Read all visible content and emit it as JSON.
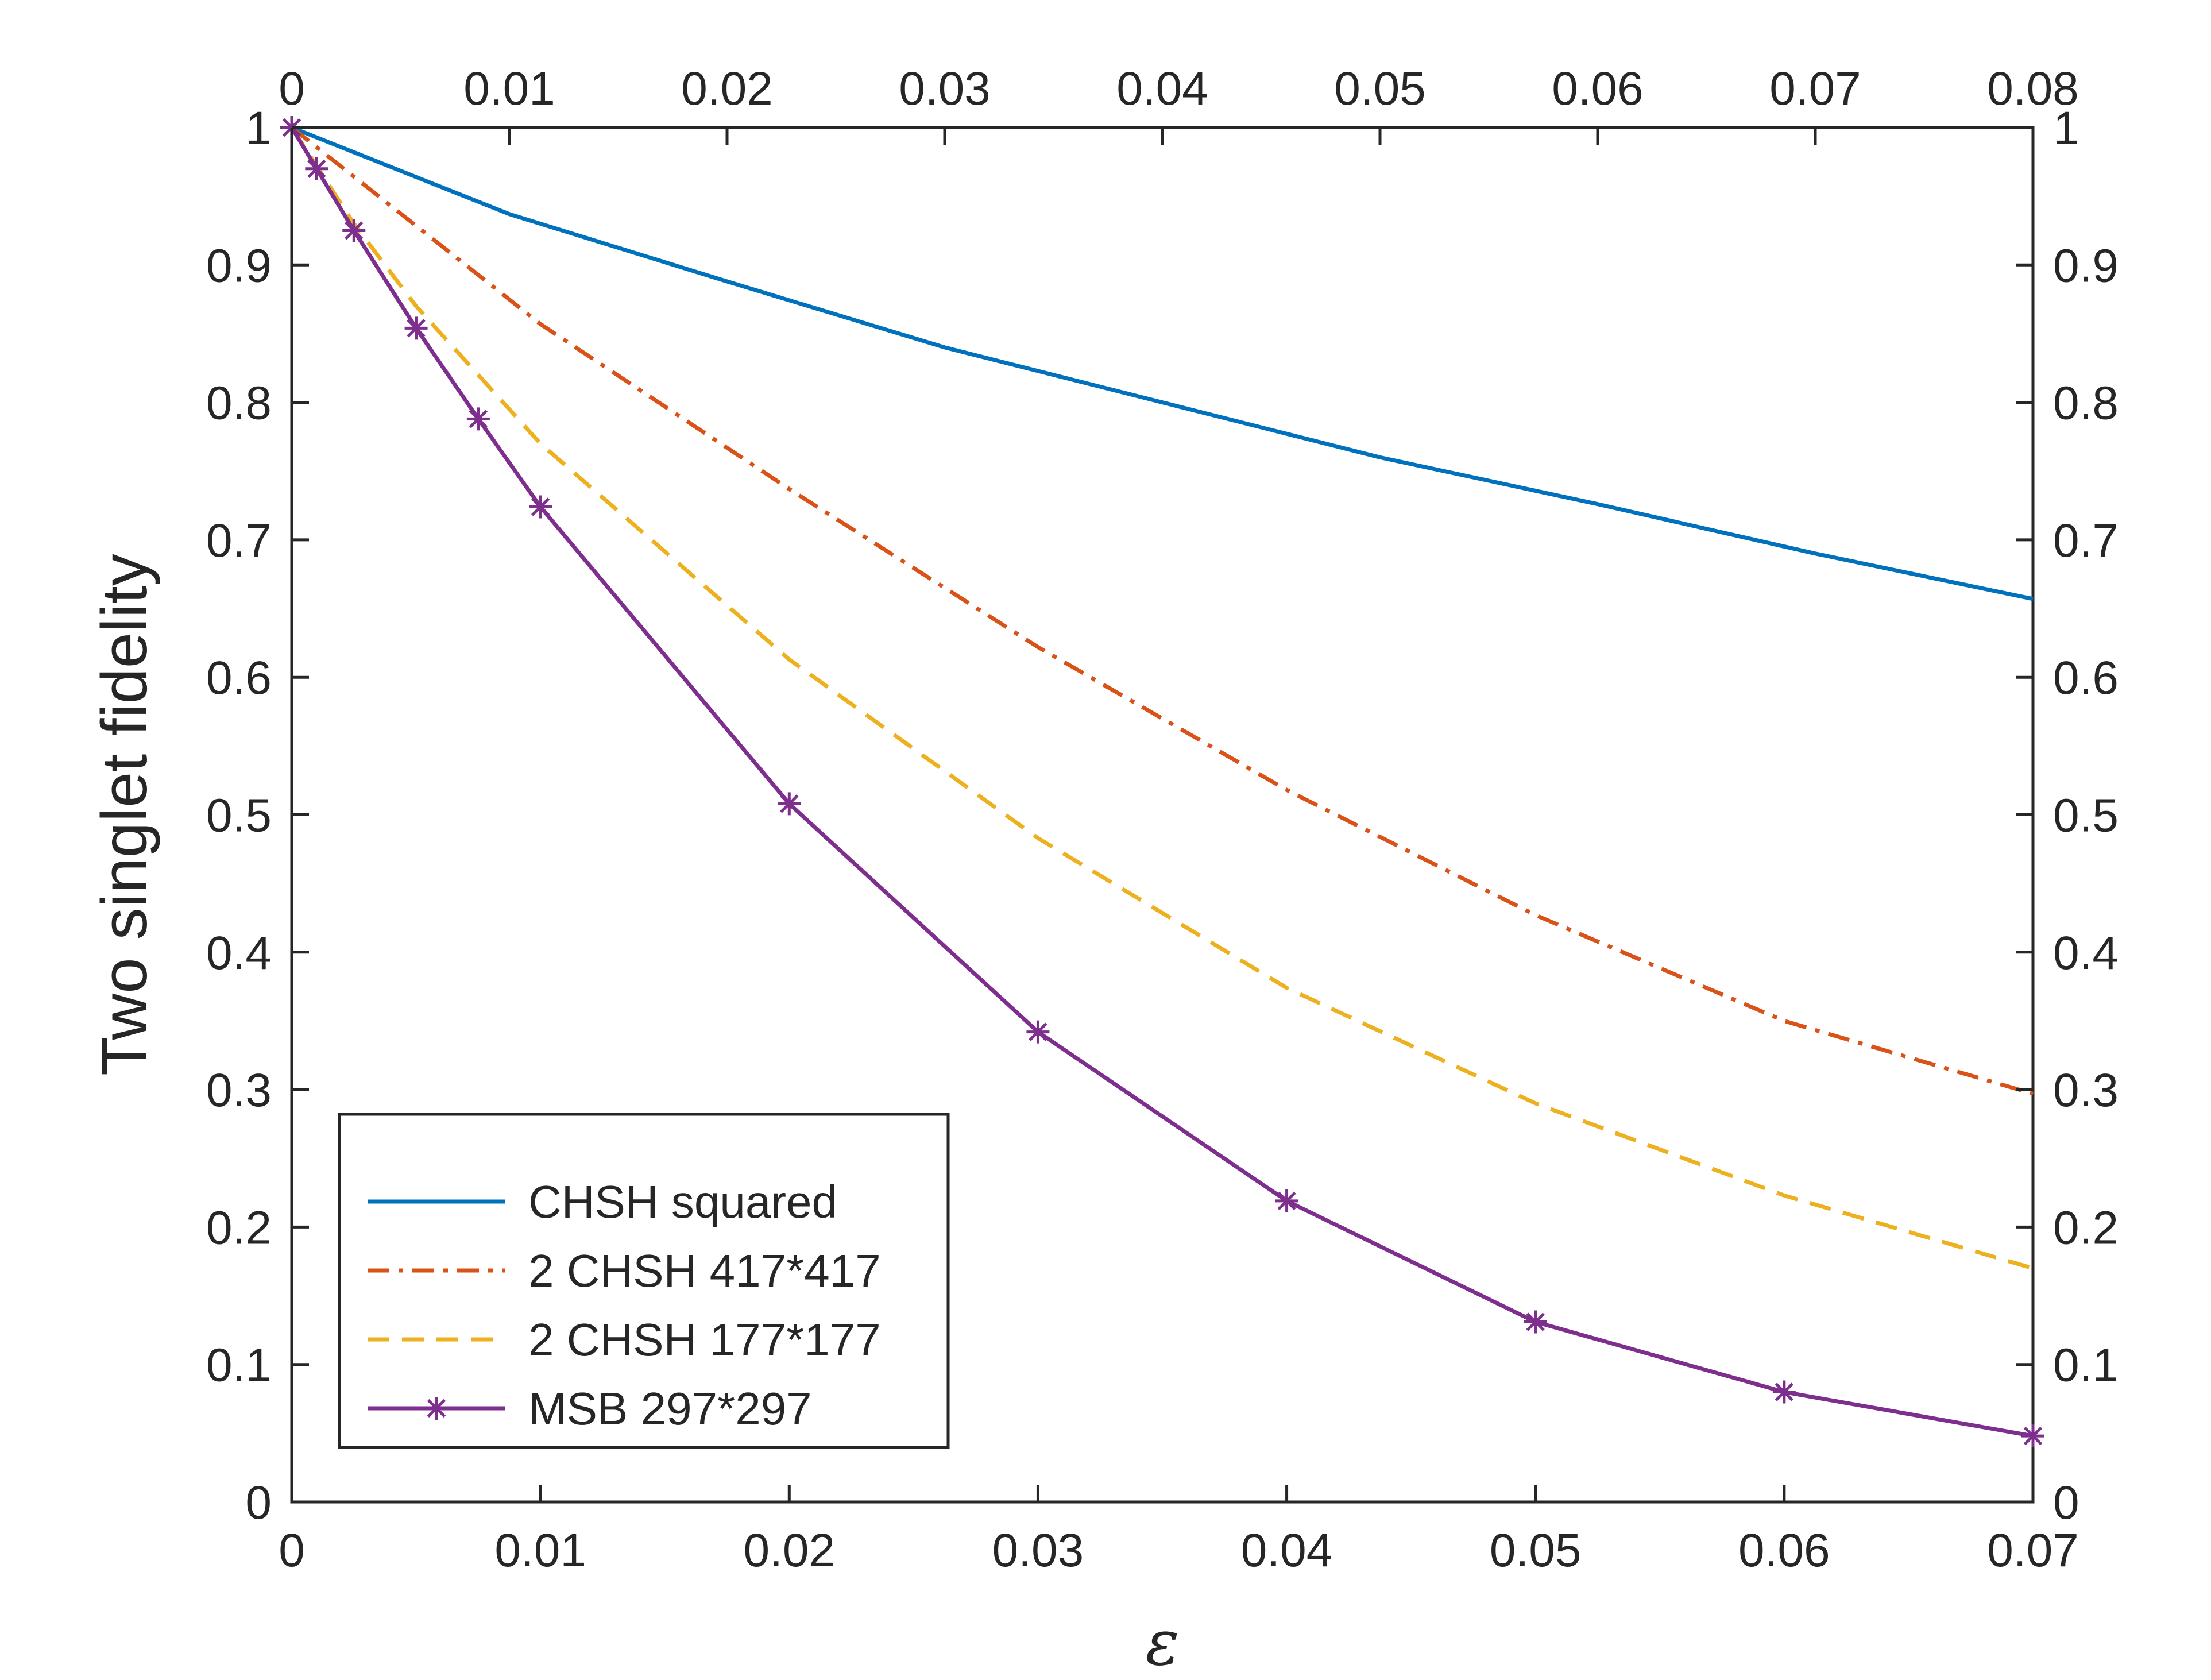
{
  "chart_data": {
    "type": "line",
    "title": "",
    "xlabel": "ε",
    "ylabel": "Two singlet fidelity",
    "xlim": [
      0,
      0.07
    ],
    "ylim": [
      0,
      1
    ],
    "x_top_lim": [
      0,
      0.08
    ],
    "grid": false,
    "legend_position": "bottom-left",
    "x_ticks": [
      "0",
      "0.01",
      "0.02",
      "0.03",
      "0.04",
      "0.05",
      "0.06",
      "0.07"
    ],
    "x_top_ticks": [
      "0",
      "0.01",
      "0.02",
      "0.03",
      "0.04",
      "0.05",
      "0.06",
      "0.07",
      "0.08"
    ],
    "y_ticks": [
      "0",
      "0.1",
      "0.2",
      "0.3",
      "0.4",
      "0.5",
      "0.6",
      "0.7",
      "0.8",
      "0.9",
      "1"
    ],
    "y_right_ticks": [
      "0",
      "0.1",
      "0.2",
      "0.3",
      "0.4",
      "0.5",
      "0.6",
      "0.7",
      "0.8",
      "0.9",
      "1"
    ],
    "series": [
      {
        "name": "CHSH squared",
        "axis": "top",
        "color": "#0072BD",
        "dash": "solid",
        "marker": "none",
        "x": [
          0,
          0.01,
          0.02,
          0.03,
          0.04,
          0.05,
          0.06,
          0.07,
          0.08
        ],
        "y": [
          1.0,
          0.937,
          0.888,
          0.84,
          0.8,
          0.76,
          0.726,
          0.69,
          0.657
        ]
      },
      {
        "name": "2 CHSH 417*417",
        "axis": "bottom",
        "color": "#D95319",
        "dash": "dashdot",
        "marker": "none",
        "x": [
          0,
          0.01,
          0.02,
          0.03,
          0.04,
          0.05,
          0.06,
          0.07
        ],
        "y": [
          1.0,
          0.857,
          0.737,
          0.622,
          0.518,
          0.427,
          0.35,
          0.297
        ]
      },
      {
        "name": "2 CHSH 177*177",
        "axis": "bottom",
        "color": "#EDB120",
        "dash": "dashed",
        "marker": "none",
        "x": [
          0,
          0.0025,
          0.005,
          0.01,
          0.02,
          0.03,
          0.04,
          0.05,
          0.06,
          0.07
        ],
        "y": [
          1.0,
          0.93,
          0.87,
          0.77,
          0.613,
          0.483,
          0.374,
          0.29,
          0.223,
          0.17
        ]
      },
      {
        "name": "MSB 297*297",
        "axis": "bottom",
        "color": "#7E2F8E",
        "dash": "solid",
        "marker": "asterisk",
        "x": [
          0,
          0.001,
          0.0025,
          0.005,
          0.0075,
          0.01,
          0.02,
          0.03,
          0.04,
          0.05,
          0.06,
          0.07
        ],
        "y": [
          1.0,
          0.97,
          0.925,
          0.854,
          0.788,
          0.724,
          0.508,
          0.342,
          0.219,
          0.131,
          0.08,
          0.048
        ]
      }
    ]
  }
}
